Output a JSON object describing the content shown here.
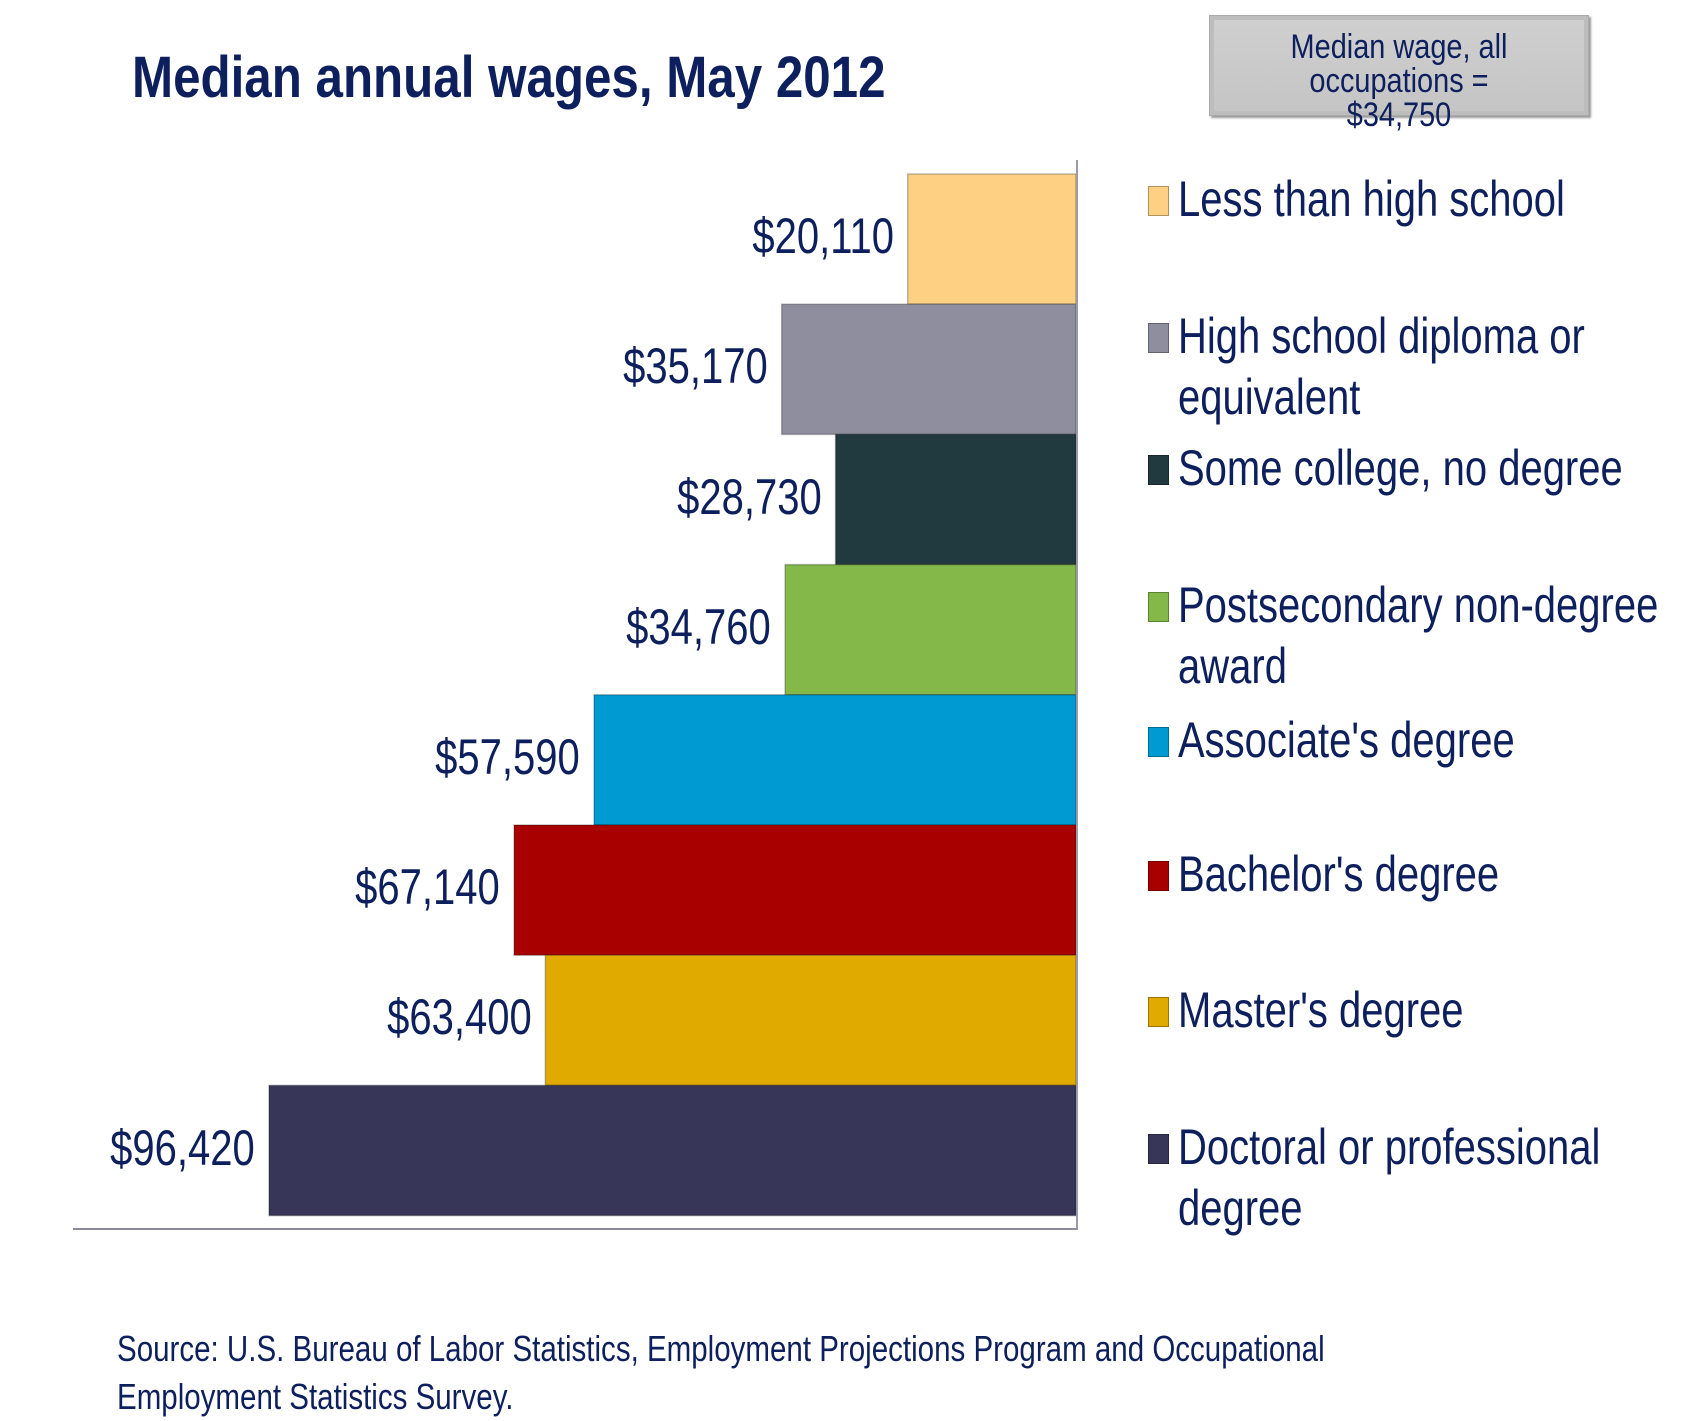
{
  "chart_data": {
    "type": "bar",
    "orientation": "horizontal",
    "title": "Median annual wages, May 2012",
    "annotation": "Median wage, all occupations = $34,750",
    "categories": [
      "Less than high school",
      "High school diploma or equivalent",
      "Some college, no degree",
      "Postsecondary non-degree award",
      "Associate's degree",
      "Bachelor's degree",
      "Master's degree",
      "Doctoral or professional degree"
    ],
    "values": [
      20110,
      35170,
      28730,
      34760,
      57590,
      67140,
      63400,
      96420
    ],
    "data_labels": [
      "$20,110",
      "$35,170",
      "$28,730",
      "$34,760",
      "$57,590",
      "$67,140",
      "$63,400",
      "$96,420"
    ],
    "colors": [
      "#fdd084",
      "#8f8e9e",
      "#213a3f",
      "#84b94a",
      "#009ad3",
      "#a80000",
      "#e0aa00",
      "#383658"
    ],
    "legend_labels": [
      [
        "Less than high school"
      ],
      [
        "High school diploma or",
        "equivalent"
      ],
      [
        "Some college, no degree"
      ],
      [
        "Postsecondary non-degree",
        "award"
      ],
      [
        "Associate's degree"
      ],
      [
        "Bachelor's degree"
      ],
      [
        "Master's degree"
      ],
      [
        "Doctoral or professional",
        "degree"
      ]
    ],
    "legend_placement": "right",
    "grid": false,
    "xlim": [
      0,
      96420
    ],
    "source": [
      "Source:  U.S. Bureau of Labor Statistics, Employment Projections Program and Occupational",
      "Employment Statistics Survey."
    ]
  }
}
